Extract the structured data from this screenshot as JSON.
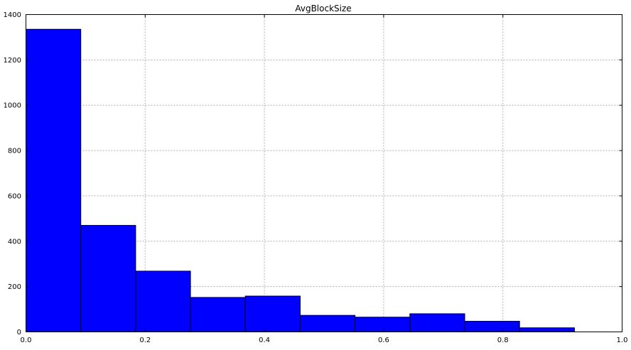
{
  "chart_data": {
    "type": "bar",
    "title": "AvgBlockSize",
    "xlabel": "",
    "ylabel": "",
    "xlim": [
      0.0,
      1.0
    ],
    "ylim": [
      0,
      1400
    ],
    "grid": true,
    "bar_color": "#0000ff",
    "edge_color": "#000000",
    "x_ticks": [
      {
        "value": 0.0,
        "label": "0.0"
      },
      {
        "value": 0.2,
        "label": "0.2"
      },
      {
        "value": 0.4,
        "label": "0.4"
      },
      {
        "value": 0.6,
        "label": "0.6"
      },
      {
        "value": 0.8,
        "label": "0.8"
      },
      {
        "value": 1.0,
        "label": "1.0"
      }
    ],
    "y_ticks": [
      {
        "value": 0,
        "label": "0"
      },
      {
        "value": 200,
        "label": "200"
      },
      {
        "value": 400,
        "label": "400"
      },
      {
        "value": 600,
        "label": "600"
      },
      {
        "value": 800,
        "label": "800"
      },
      {
        "value": 1000,
        "label": "1000"
      },
      {
        "value": 1200,
        "label": "1200"
      },
      {
        "value": 1400,
        "label": "1400"
      }
    ],
    "bins": [
      {
        "start": 0.0,
        "end": 0.092,
        "value": 1335
      },
      {
        "start": 0.092,
        "end": 0.184,
        "value": 470
      },
      {
        "start": 0.184,
        "end": 0.276,
        "value": 268
      },
      {
        "start": 0.276,
        "end": 0.368,
        "value": 152
      },
      {
        "start": 0.368,
        "end": 0.46,
        "value": 158
      },
      {
        "start": 0.46,
        "end": 0.552,
        "value": 73
      },
      {
        "start": 0.552,
        "end": 0.644,
        "value": 65
      },
      {
        "start": 0.644,
        "end": 0.736,
        "value": 80
      },
      {
        "start": 0.736,
        "end": 0.828,
        "value": 47
      },
      {
        "start": 0.828,
        "end": 0.92,
        "value": 18
      }
    ]
  }
}
